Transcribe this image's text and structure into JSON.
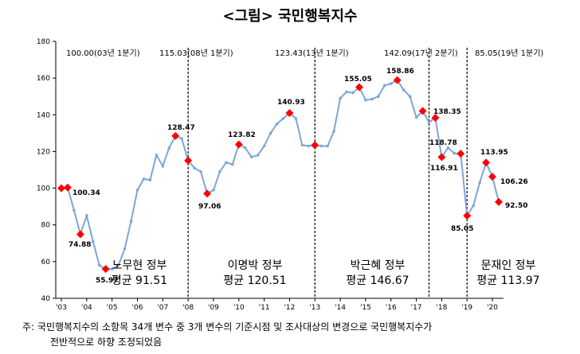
{
  "chart_data": {
    "type": "line",
    "title": "<그림> 국민행복지수",
    "ylim": [
      40,
      180
    ],
    "yticks": [
      40,
      60,
      80,
      100,
      120,
      140,
      160,
      180
    ],
    "xticks": [
      "'03",
      "'04",
      "'05",
      "'06",
      "'07",
      "'08",
      "'09",
      "'10",
      "'11",
      "'12",
      "'13",
      "'14",
      "'15",
      "'16",
      "'17",
      "'18",
      "'19",
      "'20"
    ],
    "series": [
      {
        "values": [
          100.0,
          100.34,
          88,
          74.88,
          85,
          71,
          58,
          55.97,
          56,
          58,
          67,
          82,
          99,
          105,
          104.5,
          118,
          112,
          122,
          128.47,
          127,
          115.03,
          111,
          109,
          97.06,
          99,
          109,
          114,
          113,
          123.82,
          122,
          117,
          118,
          123,
          130,
          135,
          138,
          140.93,
          138,
          123.5,
          123,
          123.43,
          123,
          123,
          131,
          149,
          152.5,
          152,
          155.05,
          148,
          148.5,
          150,
          156,
          157,
          158.86,
          153.5,
          150,
          138.5,
          142.09,
          136,
          138.35,
          116.91,
          122,
          119,
          118.78,
          85.05,
          90.5,
          103,
          113.95,
          106.26,
          92.5
        ]
      }
    ],
    "highlights": [
      {
        "index": 0,
        "label": "100.00(03년 1분기)"
      },
      {
        "index": 1,
        "label": "100.34"
      },
      {
        "index": 3,
        "label": "74.88"
      },
      {
        "index": 7,
        "label": "55.97"
      },
      {
        "index": 18,
        "label": "128.47"
      },
      {
        "index": 20,
        "label": "115.03(08년 1분기)"
      },
      {
        "index": 23,
        "label": "97.06"
      },
      {
        "index": 28,
        "label": "123.82"
      },
      {
        "index": 36,
        "label": "140.93"
      },
      {
        "index": 40,
        "label": "123.43(13년 1분기)"
      },
      {
        "index": 47,
        "label": "155.05"
      },
      {
        "index": 53,
        "label": "158.86"
      },
      {
        "index": 57,
        "label": "142.09(17년 2분기)"
      },
      {
        "index": 59,
        "label": "138.35"
      },
      {
        "index": 60,
        "label": "116.91"
      },
      {
        "index": 63,
        "label": "118.78"
      },
      {
        "index": 64,
        "label": "85.05(19년 1분기)"
      },
      {
        "index": 64,
        "label": "85.05"
      },
      {
        "index": 67,
        "label": "113.95"
      },
      {
        "index": 68,
        "label": "106.26"
      },
      {
        "index": 69,
        "label": "92.50"
      }
    ],
    "eras": [
      {
        "name": "노무현 정부",
        "avg": "평균 91.51"
      },
      {
        "name": "이명박 정부",
        "avg": "평균 120.51"
      },
      {
        "name": "박근혜 정부",
        "avg": "평균 146.67"
      },
      {
        "name": "문재인 정부",
        "avg": "평균 113.97"
      }
    ],
    "divider_indices": [
      20,
      40,
      58,
      64
    ],
    "colors": {
      "line": "#7ba7d8",
      "marker": "#ff0000",
      "divider": "#000000"
    }
  },
  "notes": {
    "line1": "주: 국민행복지수의 소항목 34개 변수 중 3개 변수의 기준시점 및 조사대상의 변경으로 국민행복지수가",
    "line2": "전반적으로 하향 조정되었음"
  }
}
